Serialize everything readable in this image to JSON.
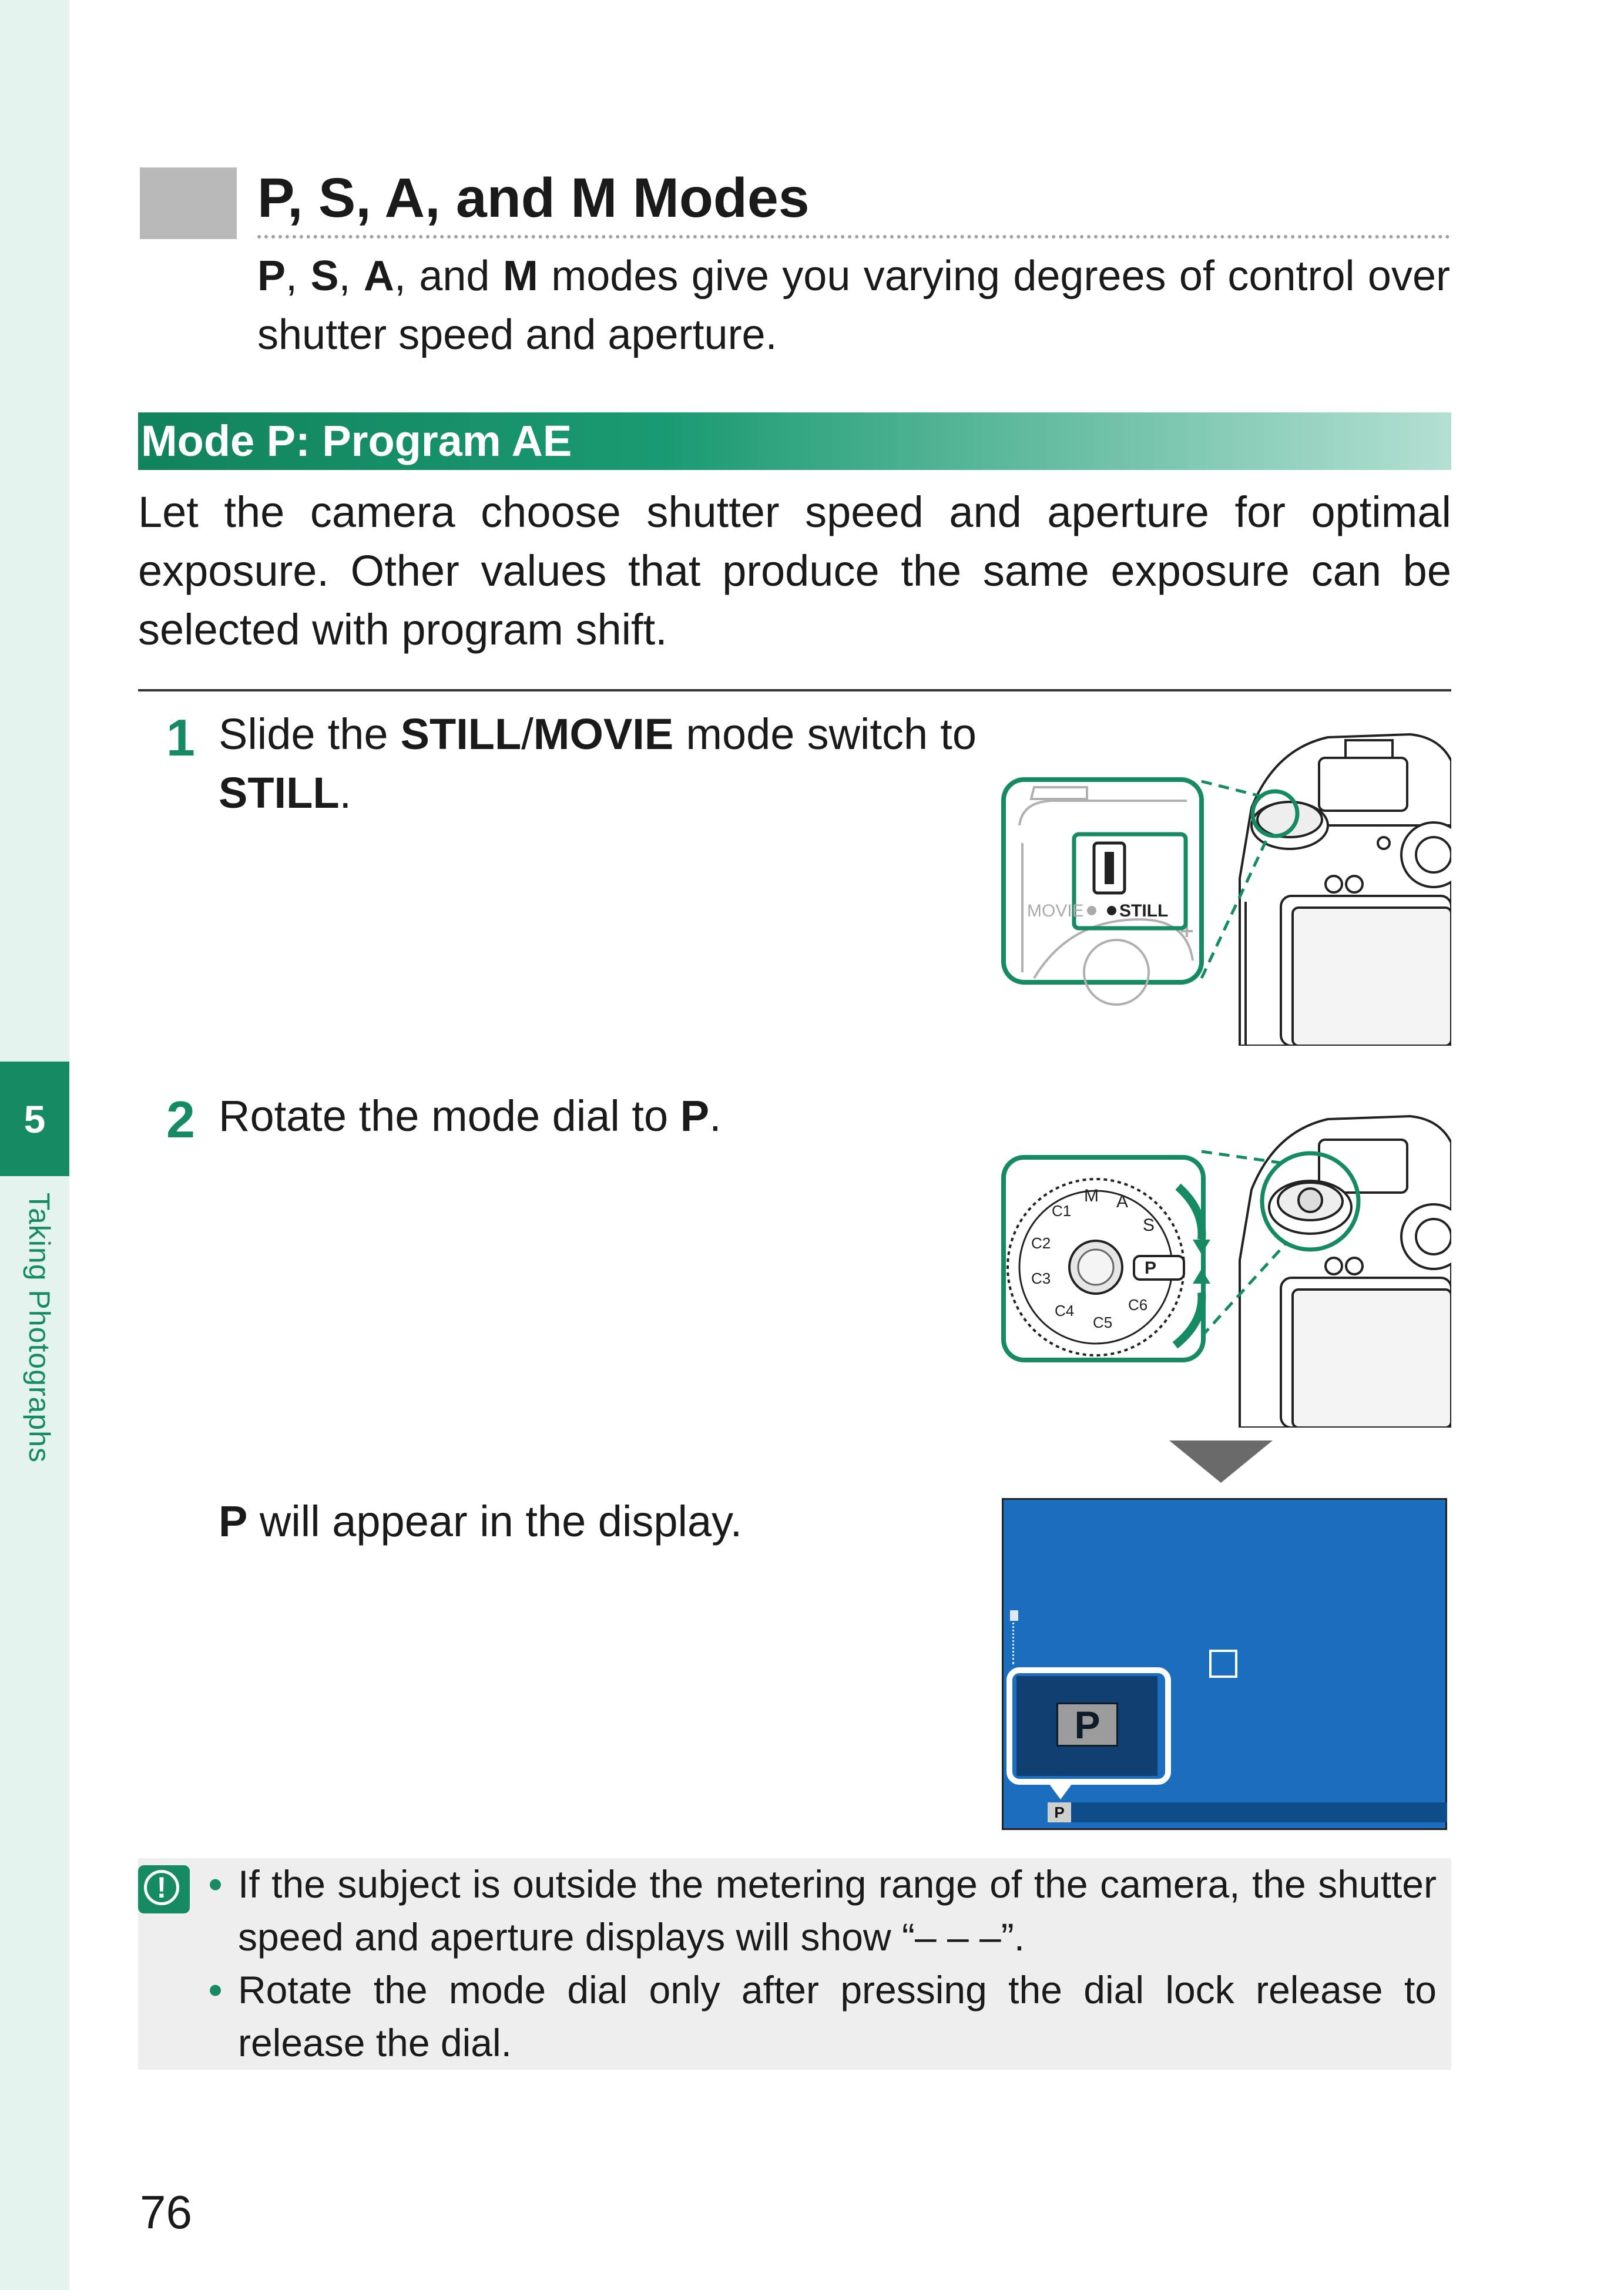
{
  "sidebar": {
    "chapter_number": "5",
    "chapter_title": "Taking Photographs"
  },
  "title": "P, S, A, and M Modes",
  "intro": {
    "m1": "P",
    "s1": ", ",
    "m2": "S",
    "s2": ", ",
    "m3": "A",
    "s3": ", and ",
    "m4": "M",
    "rest": " modes give you varying degrees of control over shutter speed and aperture."
  },
  "section": {
    "heading": "Mode P: Program AE",
    "body": "Let the camera choose shutter speed and aperture for optimal exposure. Other values that produce the same exposure can be selected with program shift."
  },
  "steps": [
    {
      "number": "1",
      "pre": "Slide the ",
      "kw1": "STILL",
      "mid": "/",
      "kw2": "MOVIE",
      "post": " mode switch to ",
      "kw3": "STILL",
      "end": "."
    },
    {
      "number": "2",
      "pre": "Rotate the mode dial to ",
      "kw1": "P",
      "end": "."
    }
  ],
  "result": {
    "kw": "P",
    "text": " will appear in the display."
  },
  "illustrations": {
    "switch_labels": {
      "movie": "MOVIE",
      "still": "STILL"
    },
    "dial_labels": [
      "P",
      "S",
      "A",
      "M",
      "C1",
      "C2",
      "C3",
      "C4",
      "C5",
      "C6"
    ],
    "screen_mode": "P",
    "screen_bar_mode": "P"
  },
  "notes": [
    "If the subject is outside the metering range of the camera, the shutter speed and aperture displays will show “– – –”.",
    "Rotate the mode dial only after pressing the dial lock release to release the dial."
  ],
  "page_number": "76",
  "colors": {
    "accent": "#168a62",
    "screen": "#1a6ebd"
  }
}
